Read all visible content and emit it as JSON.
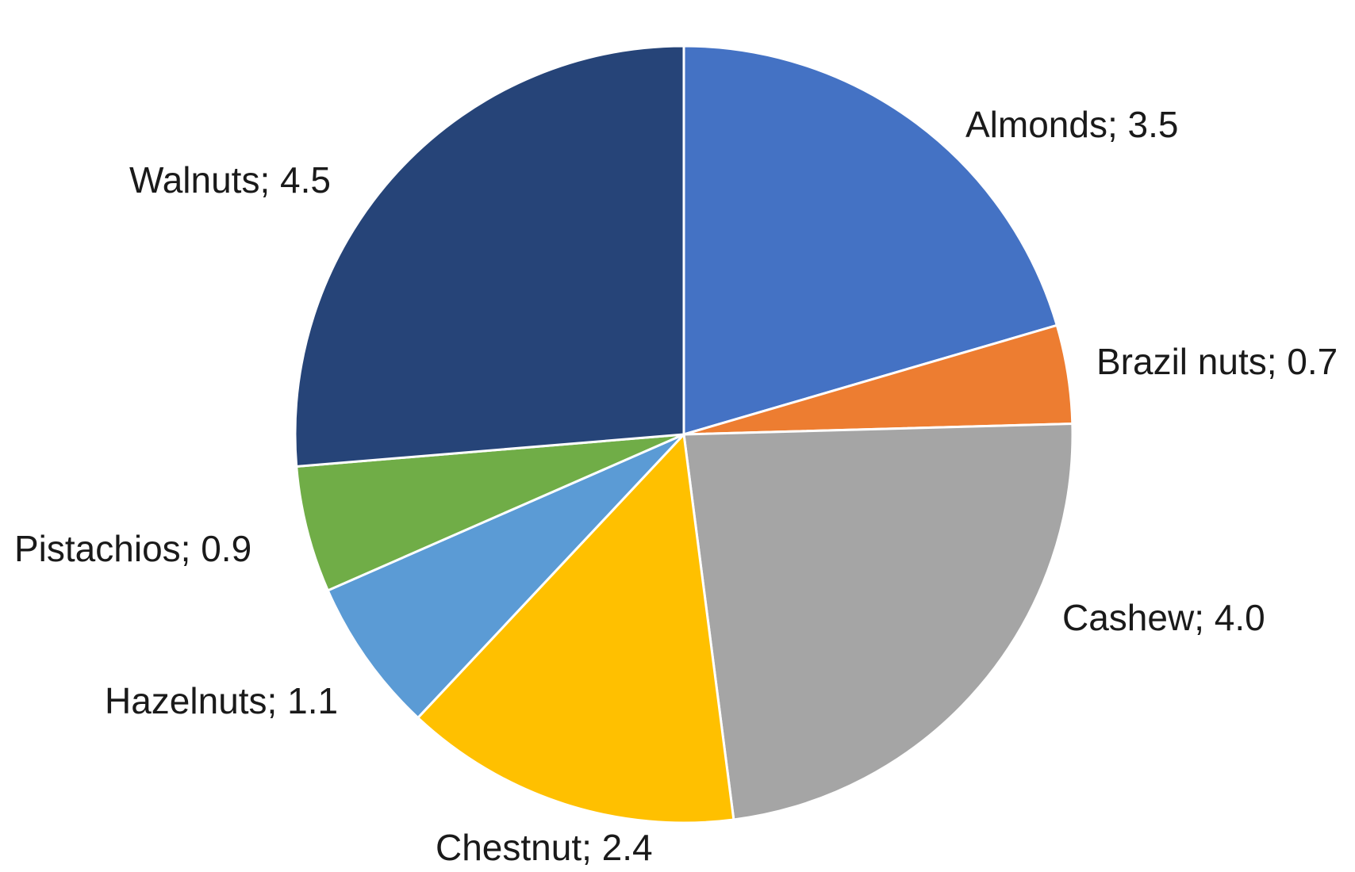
{
  "chart_data": {
    "type": "pie",
    "title": "",
    "start_angle_deg": 0,
    "direction": "clockwise",
    "label_separator": "; ",
    "slices": [
      {
        "name": "Almonds",
        "value": 3.5,
        "label": "Almonds; 3.5",
        "color": "#4472C4"
      },
      {
        "name": "Brazil nuts",
        "value": 0.7,
        "label": "Brazil nuts; 0.7",
        "color": "#ED7D31"
      },
      {
        "name": "Cashew",
        "value": 4.0,
        "label": "Cashew; 4.0",
        "color": "#A5A5A5"
      },
      {
        "name": "Chestnut",
        "value": 2.4,
        "label": "Chestnut; 2.4",
        "color": "#FFC000"
      },
      {
        "name": "Hazelnuts",
        "value": 1.1,
        "label": "Hazelnuts; 1.1",
        "color": "#5B9BD5"
      },
      {
        "name": "Pistachios",
        "value": 0.9,
        "label": "Pistachios; 0.9",
        "color": "#70AD47"
      },
      {
        "name": "Walnuts",
        "value": 4.5,
        "label": "Walnuts; 4.5",
        "color": "#264478"
      }
    ],
    "legend": "none",
    "data_labels": "outside"
  }
}
